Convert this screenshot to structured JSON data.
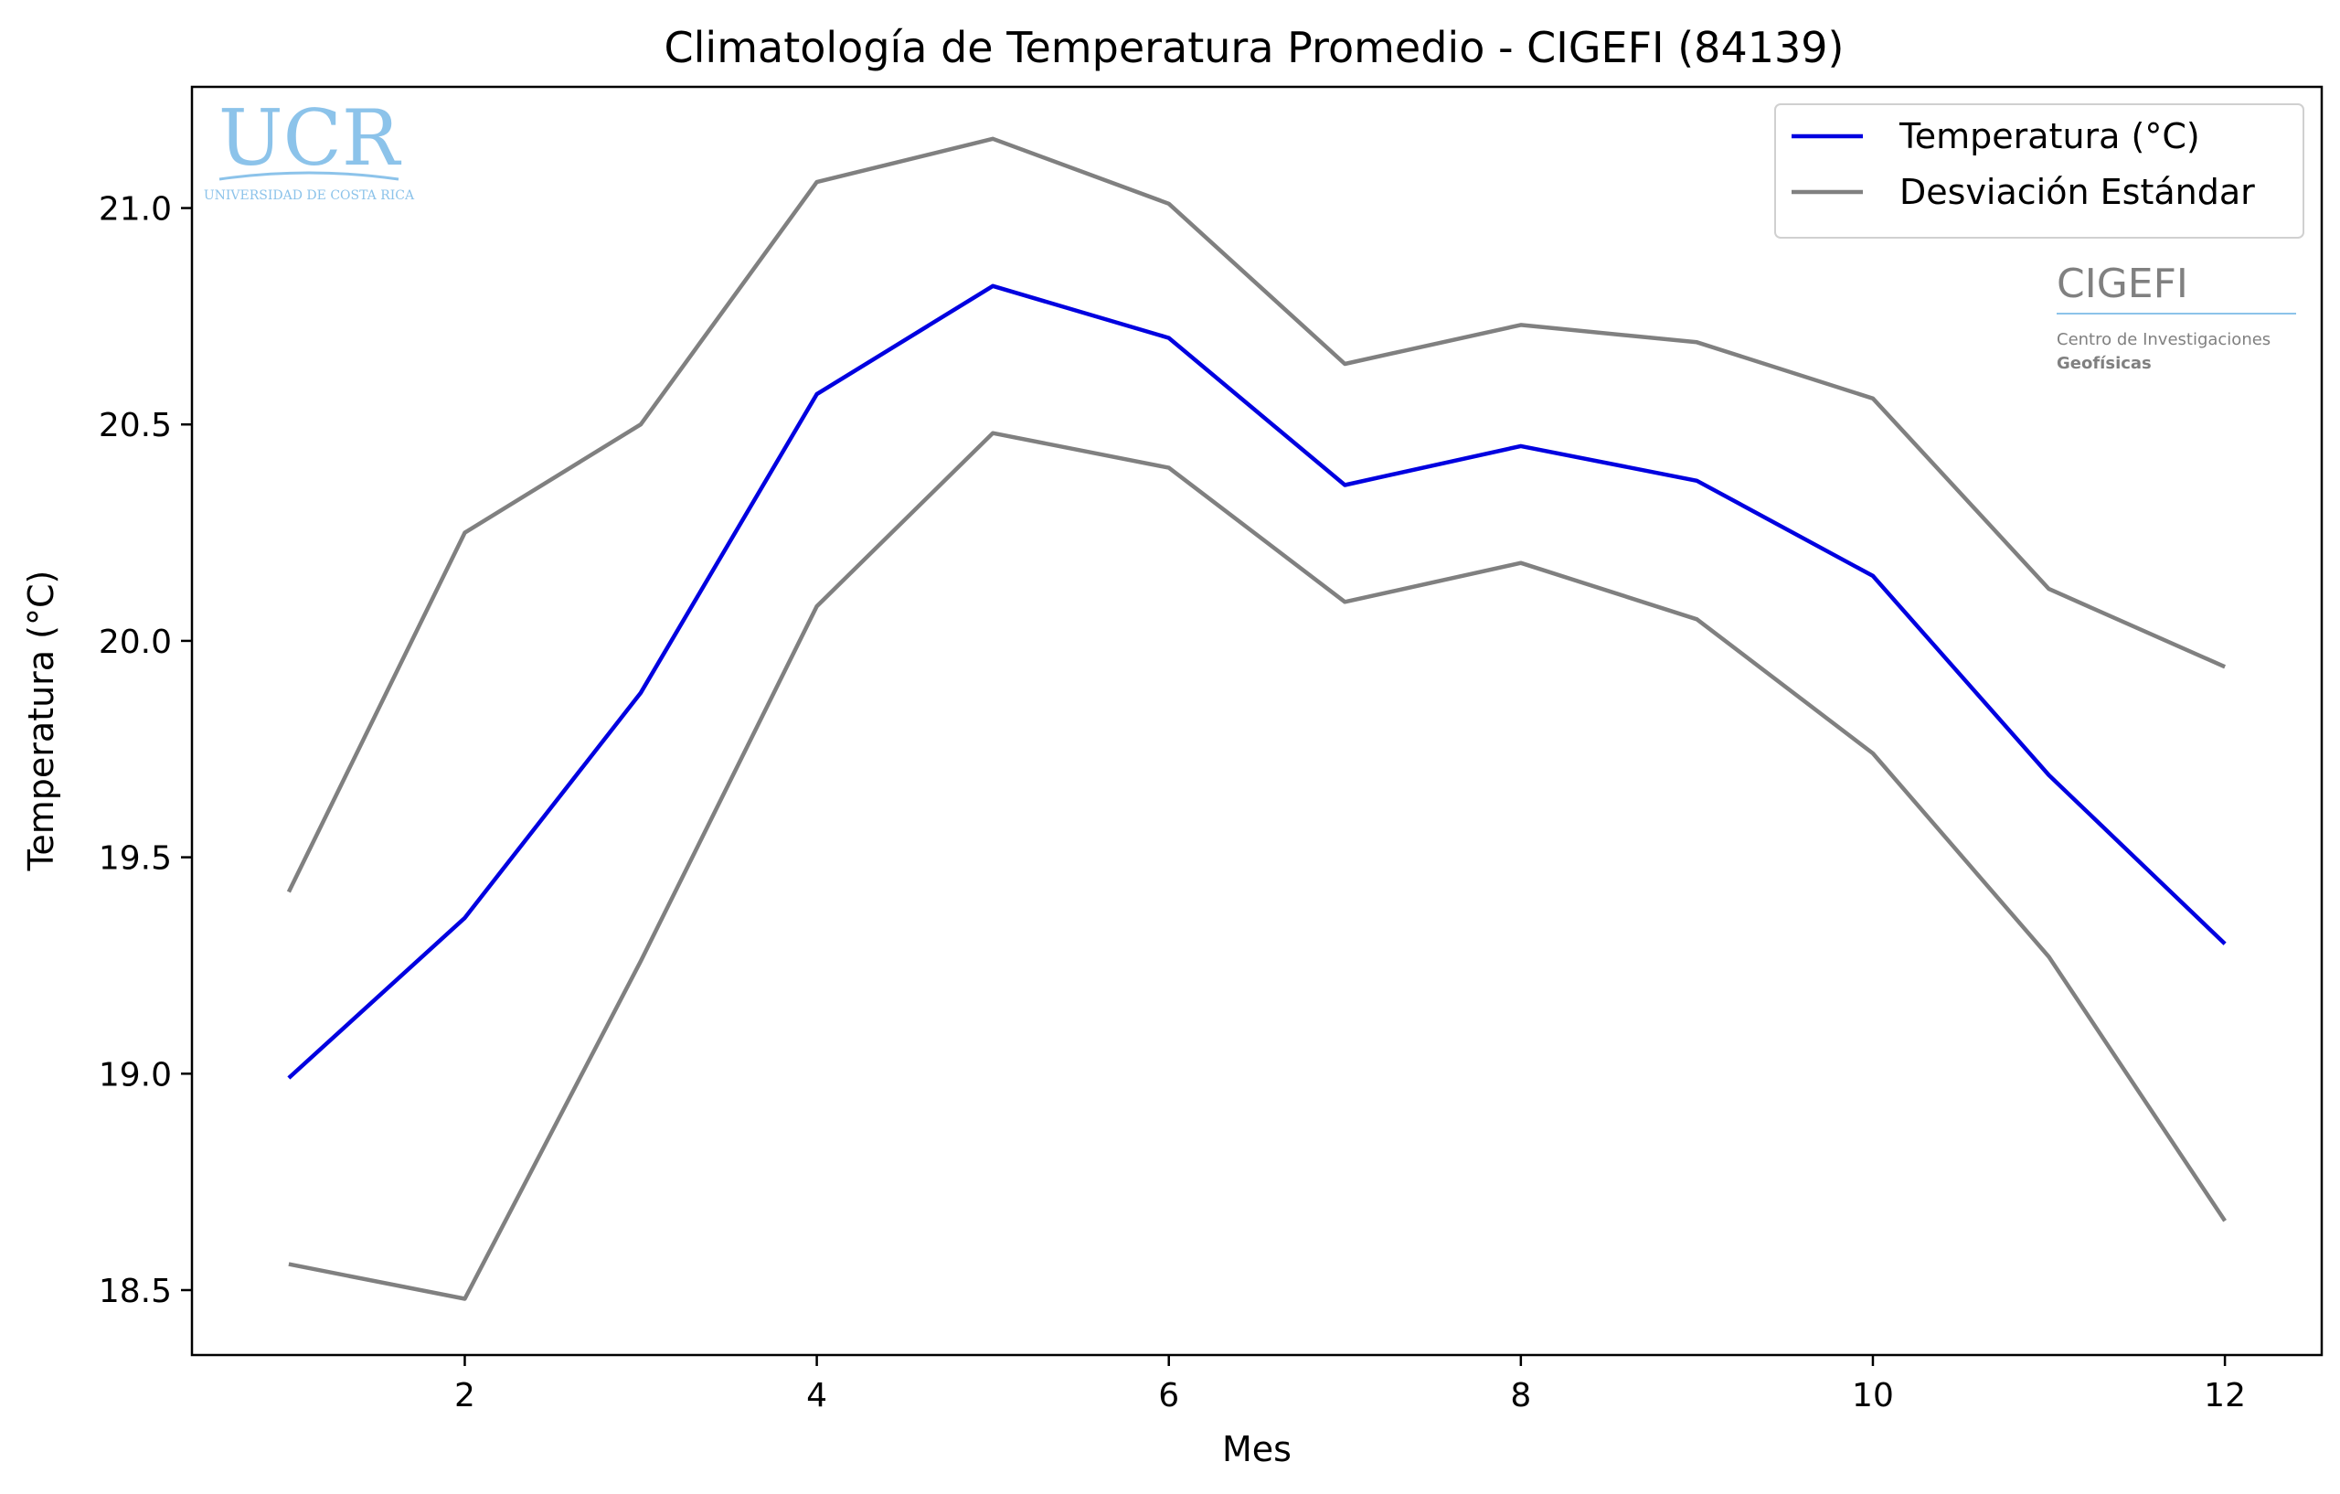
{
  "chart_data": {
    "type": "line",
    "title": "Climatología de Temperatura Promedio - CIGEFI (84139)",
    "xlabel": "Mes",
    "ylabel": "Temperatura (°C)",
    "xlim": [
      0.45,
      12.55
    ],
    "ylim": [
      18.35,
      21.28
    ],
    "x": [
      1,
      2,
      3,
      4,
      5,
      6,
      7,
      8,
      9,
      10,
      11,
      12
    ],
    "xticks": [
      2,
      4,
      6,
      8,
      10,
      12
    ],
    "yticks": [
      18.5,
      19.0,
      19.5,
      20.0,
      20.5,
      21.0
    ],
    "grid": false,
    "legend_position": "top-right",
    "series": [
      {
        "name": "Temperatura (°C)",
        "color": "#0000e0",
        "values": [
          18.99,
          19.36,
          19.88,
          20.57,
          20.82,
          20.7,
          20.36,
          20.45,
          20.37,
          20.15,
          19.69,
          19.3
        ]
      },
      {
        "name": "Desviación Estándar",
        "color": "#808080",
        "legend": true,
        "values": [
          19.42,
          20.25,
          20.5,
          21.06,
          21.16,
          21.01,
          20.64,
          20.73,
          20.69,
          20.56,
          20.12,
          19.94
        ]
      },
      {
        "name": "",
        "color": "#808080",
        "legend": false,
        "values": [
          18.56,
          18.48,
          19.26,
          20.08,
          20.48,
          20.4,
          20.09,
          20.18,
          20.05,
          19.74,
          19.27,
          18.66
        ]
      }
    ]
  },
  "logos": {
    "ucr": {
      "mark": "UCR",
      "caption": "UNIVERSIDAD DE COSTA RICA",
      "color": "#8cc3ea"
    },
    "cigefi": {
      "mark": "CIGEFI",
      "line1": "Centro de Investigaciones",
      "line2": "Geofísicas",
      "color": "#808080",
      "rule_color": "#8cc3ea"
    }
  }
}
